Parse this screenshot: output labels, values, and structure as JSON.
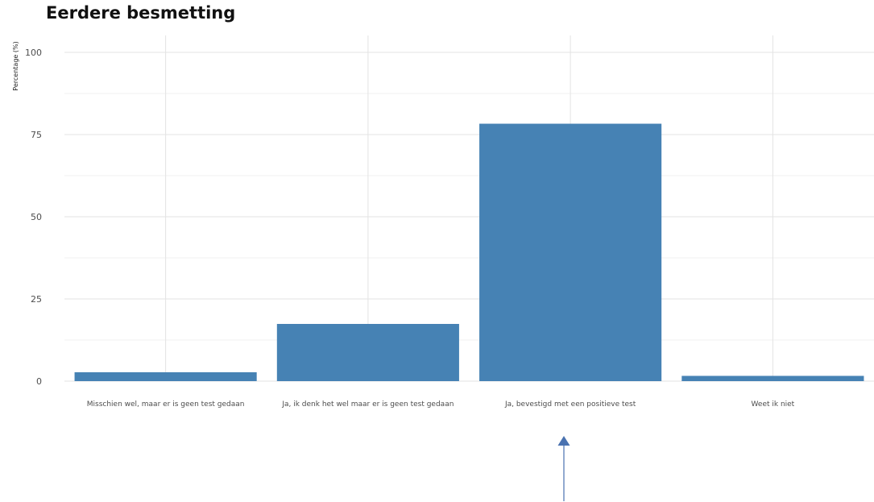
{
  "chart_data": {
    "type": "bar",
    "title": "Eerdere besmetting",
    "xlabel": "",
    "ylabel": "Percentage (%)",
    "categories": [
      "Misschien wel, maar er is geen test gedaan",
      "Ja, ik denk het wel maar er is geen test gedaan",
      "Ja, bevestigd met een positieve test",
      "Weet ik niet"
    ],
    "values": [
      2.7,
      17.4,
      78.3,
      1.6
    ],
    "ylim": [
      0,
      100
    ],
    "yticks": [
      0,
      25,
      50,
      75,
      100
    ],
    "grid": true,
    "bar_color": "#4682b4",
    "annotation": {
      "type": "arrow",
      "points_to_category": "Ja, bevestigd met een positieve test",
      "color": "#4a72b0"
    }
  }
}
